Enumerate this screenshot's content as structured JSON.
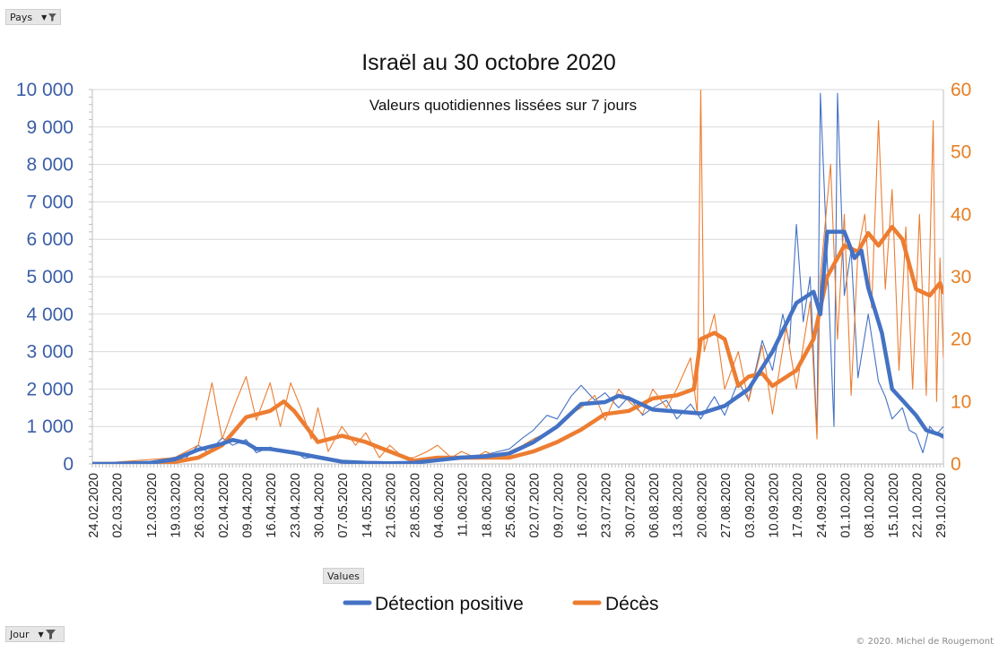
{
  "filters": {
    "country_label": "Pays",
    "day_label": "Jour",
    "values_label": "Values",
    "filter_icon": "funnel-icon",
    "dropdown_icon": "chevron-down-icon"
  },
  "credit": "© 2020.  Michel de Rougemont",
  "chart_data": {
    "type": "line",
    "title": "Israël au 30 octobre 2020",
    "subtitle": "Valeurs quotidiennes lissées sur 7 jours",
    "x_tick_labels": [
      "24.02.2020",
      "02.03.2020",
      "12.03.2020",
      "19.03.2020",
      "26.03.2020",
      "02.04.2020",
      "09.04.2020",
      "16.04.2020",
      "23.04.2020",
      "30.04.2020",
      "07.05.2020",
      "14.05.2020",
      "21.05.2020",
      "28.05.2020",
      "04.06.2020",
      "11.06.2020",
      "18.06.2020",
      "25.06.2020",
      "02.07.2020",
      "09.07.2020",
      "16.07.2020",
      "23.07.2020",
      "30.07.2020",
      "06.08.2020",
      "13.08.2020",
      "20.08.2020",
      "27.08.2020",
      "03.09.2020",
      "10.09.2020",
      "17.09.2020",
      "24.09.2020",
      "01.10.2020",
      "08.10.2020",
      "15.10.2020",
      "22.10.2020",
      "29.10.2020"
    ],
    "y_left": {
      "min": 0,
      "max": 10000,
      "ticks": [
        "0",
        "1 000",
        "2 000",
        "3 000",
        "4 000",
        "5 000",
        "6 000",
        "7 000",
        "8 000",
        "9 000",
        "10 000"
      ],
      "color": "#3a5ea8"
    },
    "y_right": {
      "min": 0,
      "max": 60,
      "ticks": [
        "0",
        "10",
        "20",
        "30",
        "40",
        "50",
        "60"
      ],
      "color": "#e67e22"
    },
    "grid": "horizontal",
    "legend": "bottom",
    "series": [
      {
        "name": "Détection positive",
        "axis": "left",
        "color": "#4472c4",
        "smoothed": [
          [
            "24.02.2020",
            0
          ],
          [
            "02.03.2020",
            5
          ],
          [
            "12.03.2020",
            30
          ],
          [
            "19.03.2020",
            120
          ],
          [
            "26.03.2020",
            380
          ],
          [
            "02.04.2020",
            540
          ],
          [
            "05.04.2020",
            640
          ],
          [
            "09.04.2020",
            560
          ],
          [
            "12.04.2020",
            400
          ],
          [
            "16.04.2020",
            400
          ],
          [
            "23.04.2020",
            300
          ],
          [
            "30.04.2020",
            180
          ],
          [
            "07.05.2020",
            60
          ],
          [
            "14.05.2020",
            30
          ],
          [
            "21.05.2020",
            20
          ],
          [
            "28.05.2020",
            30
          ],
          [
            "04.06.2020",
            100
          ],
          [
            "11.06.2020",
            170
          ],
          [
            "18.06.2020",
            200
          ],
          [
            "25.06.2020",
            280
          ],
          [
            "02.07.2020",
            580
          ],
          [
            "09.07.2020",
            1000
          ],
          [
            "16.07.2020",
            1600
          ],
          [
            "23.07.2020",
            1650
          ],
          [
            "27.07.2020",
            1820
          ],
          [
            "30.07.2020",
            1750
          ],
          [
            "06.08.2020",
            1450
          ],
          [
            "13.08.2020",
            1400
          ],
          [
            "20.08.2020",
            1350
          ],
          [
            "27.08.2020",
            1550
          ],
          [
            "03.09.2020",
            2000
          ],
          [
            "10.09.2020",
            3000
          ],
          [
            "17.09.2020",
            4300
          ],
          [
            "22.09.2020",
            4600
          ],
          [
            "24.09.2020",
            4000
          ],
          [
            "26.09.2020",
            6200
          ],
          [
            "01.10.2020",
            6200
          ],
          [
            "04.10.2020",
            5500
          ],
          [
            "06.10.2020",
            5700
          ],
          [
            "08.10.2020",
            4700
          ],
          [
            "12.10.2020",
            3500
          ],
          [
            "15.10.2020",
            2000
          ],
          [
            "18.10.2020",
            1700
          ],
          [
            "22.10.2020",
            1300
          ],
          [
            "25.10.2020",
            900
          ],
          [
            "29.10.2020",
            780
          ],
          [
            "30.10.2020",
            730
          ]
        ],
        "daily": [
          [
            "24.02.2020",
            0
          ],
          [
            "02.03.2020",
            10
          ],
          [
            "12.03.2020",
            60
          ],
          [
            "19.03.2020",
            180
          ],
          [
            "22.03.2020",
            120
          ],
          [
            "26.03.2020",
            500
          ],
          [
            "29.03.2020",
            300
          ],
          [
            "02.04.2020",
            700
          ],
          [
            "05.04.2020",
            500
          ],
          [
            "09.04.2020",
            650
          ],
          [
            "12.04.2020",
            300
          ],
          [
            "16.04.2020",
            450
          ],
          [
            "19.04.2020",
            350
          ],
          [
            "23.04.2020",
            350
          ],
          [
            "26.04.2020",
            150
          ],
          [
            "30.04.2020",
            200
          ],
          [
            "07.05.2020",
            50
          ],
          [
            "14.05.2020",
            40
          ],
          [
            "21.05.2020",
            20
          ],
          [
            "28.05.2020",
            40
          ],
          [
            "04.06.2020",
            150
          ],
          [
            "11.06.2020",
            200
          ],
          [
            "18.06.2020",
            250
          ],
          [
            "25.06.2020",
            400
          ],
          [
            "29.06.2020",
            700
          ],
          [
            "02.07.2020",
            900
          ],
          [
            "06.07.2020",
            1300
          ],
          [
            "09.07.2020",
            1200
          ],
          [
            "13.07.2020",
            1800
          ],
          [
            "16.07.2020",
            2100
          ],
          [
            "20.07.2020",
            1700
          ],
          [
            "23.07.2020",
            1900
          ],
          [
            "27.07.2020",
            1500
          ],
          [
            "30.07.2020",
            1800
          ],
          [
            "03.08.2020",
            1300
          ],
          [
            "06.08.2020",
            1500
          ],
          [
            "10.08.2020",
            1700
          ],
          [
            "13.08.2020",
            1200
          ],
          [
            "17.08.2020",
            1600
          ],
          [
            "20.08.2020",
            1200
          ],
          [
            "24.08.2020",
            1800
          ],
          [
            "27.08.2020",
            1300
          ],
          [
            "31.08.2020",
            2200
          ],
          [
            "03.09.2020",
            1700
          ],
          [
            "07.09.2020",
            3300
          ],
          [
            "10.09.2020",
            2500
          ],
          [
            "13.09.2020",
            4000
          ],
          [
            "15.09.2020",
            3200
          ],
          [
            "17.09.2020",
            6400
          ],
          [
            "19.09.2020",
            3800
          ],
          [
            "21.09.2020",
            5000
          ],
          [
            "23.09.2020",
            800
          ],
          [
            "24.09.2020",
            9900
          ],
          [
            "26.09.2020",
            5500
          ],
          [
            "28.09.2020",
            1000
          ],
          [
            "29.09.2020",
            9900
          ],
          [
            "01.10.2020",
            4500
          ],
          [
            "03.10.2020",
            5700
          ],
          [
            "05.10.2020",
            2300
          ],
          [
            "08.10.2020",
            4000
          ],
          [
            "11.10.2020",
            2200
          ],
          [
            "13.10.2020",
            1800
          ],
          [
            "15.10.2020",
            1200
          ],
          [
            "18.10.2020",
            1500
          ],
          [
            "20.10.2020",
            900
          ],
          [
            "22.10.2020",
            800
          ],
          [
            "24.10.2020",
            300
          ],
          [
            "26.10.2020",
            1000
          ],
          [
            "28.10.2020",
            800
          ],
          [
            "30.10.2020",
            1000
          ]
        ]
      },
      {
        "name": "Décès",
        "axis": "right",
        "color": "#ed7d31",
        "smoothed": [
          [
            "24.02.2020",
            0
          ],
          [
            "12.03.2020",
            0
          ],
          [
            "19.03.2020",
            0.3
          ],
          [
            "26.03.2020",
            1
          ],
          [
            "02.04.2020",
            3
          ],
          [
            "09.04.2020",
            7.5
          ],
          [
            "16.04.2020",
            8.5
          ],
          [
            "20.04.2020",
            10
          ],
          [
            "23.04.2020",
            8.5
          ],
          [
            "30.04.2020",
            3.5
          ],
          [
            "07.05.2020",
            4.5
          ],
          [
            "14.05.2020",
            3.5
          ],
          [
            "21.05.2020",
            2
          ],
          [
            "28.05.2020",
            0.5
          ],
          [
            "04.06.2020",
            1
          ],
          [
            "11.06.2020",
            1
          ],
          [
            "18.06.2020",
            1
          ],
          [
            "25.06.2020",
            1
          ],
          [
            "02.07.2020",
            2
          ],
          [
            "09.07.2020",
            3.5
          ],
          [
            "16.07.2020",
            5.5
          ],
          [
            "23.07.2020",
            8
          ],
          [
            "30.07.2020",
            8.5
          ],
          [
            "06.08.2020",
            10.5
          ],
          [
            "13.08.2020",
            11
          ],
          [
            "18.08.2020",
            12
          ],
          [
            "20.08.2020",
            20
          ],
          [
            "24.08.2020",
            21
          ],
          [
            "27.08.2020",
            20
          ],
          [
            "31.08.2020",
            12.5
          ],
          [
            "03.09.2020",
            14
          ],
          [
            "07.09.2020",
            14.5
          ],
          [
            "10.09.2020",
            12.5
          ],
          [
            "17.09.2020",
            15
          ],
          [
            "22.09.2020",
            20
          ],
          [
            "26.09.2020",
            30
          ],
          [
            "01.10.2020",
            35
          ],
          [
            "05.10.2020",
            34
          ],
          [
            "08.10.2020",
            37
          ],
          [
            "11.10.2020",
            35
          ],
          [
            "15.10.2020",
            38
          ],
          [
            "18.10.2020",
            36
          ],
          [
            "22.10.2020",
            28
          ],
          [
            "26.10.2020",
            27
          ],
          [
            "29.10.2020",
            29
          ],
          [
            "30.10.2020",
            27.5
          ]
        ],
        "daily": [
          [
            "24.02.2020",
            0
          ],
          [
            "19.03.2020",
            1
          ],
          [
            "26.03.2020",
            3
          ],
          [
            "30.03.2020",
            13
          ],
          [
            "02.04.2020",
            4
          ],
          [
            "06.04.2020",
            10
          ],
          [
            "09.04.2020",
            14
          ],
          [
            "12.04.2020",
            7
          ],
          [
            "16.04.2020",
            13
          ],
          [
            "19.04.2020",
            6
          ],
          [
            "22.04.2020",
            13
          ],
          [
            "25.04.2020",
            9
          ],
          [
            "28.04.2020",
            4
          ],
          [
            "30.04.2020",
            9
          ],
          [
            "03.05.2020",
            2
          ],
          [
            "07.05.2020",
            6
          ],
          [
            "11.05.2020",
            3
          ],
          [
            "14.05.2020",
            5
          ],
          [
            "18.05.2020",
            1
          ],
          [
            "21.05.2020",
            3
          ],
          [
            "25.05.2020",
            1
          ],
          [
            "28.05.2020",
            1
          ],
          [
            "01.06.2020",
            2
          ],
          [
            "04.06.2020",
            3
          ],
          [
            "08.06.2020",
            1
          ],
          [
            "11.06.2020",
            2
          ],
          [
            "15.06.2020",
            1
          ],
          [
            "18.06.2020",
            2
          ],
          [
            "22.06.2020",
            1
          ],
          [
            "25.06.2020",
            2
          ],
          [
            "29.06.2020",
            3
          ],
          [
            "02.07.2020",
            4
          ],
          [
            "06.07.2020",
            5
          ],
          [
            "09.07.2020",
            6
          ],
          [
            "13.07.2020",
            8
          ],
          [
            "16.07.2020",
            9
          ],
          [
            "20.07.2020",
            11
          ],
          [
            "23.07.2020",
            7
          ],
          [
            "27.07.2020",
            12
          ],
          [
            "30.07.2020",
            10
          ],
          [
            "03.08.2020",
            8
          ],
          [
            "06.08.2020",
            12
          ],
          [
            "10.08.2020",
            9
          ],
          [
            "13.08.2020",
            12
          ],
          [
            "17.08.2020",
            17
          ],
          [
            "19.08.2020",
            8
          ],
          [
            "20.08.2020",
            60
          ],
          [
            "21.08.2020",
            18
          ],
          [
            "24.08.2020",
            24
          ],
          [
            "27.08.2020",
            12
          ],
          [
            "31.08.2020",
            18
          ],
          [
            "03.09.2020",
            10
          ],
          [
            "07.09.2020",
            19
          ],
          [
            "10.09.2020",
            8
          ],
          [
            "14.09.2020",
            22
          ],
          [
            "17.09.2020",
            12
          ],
          [
            "21.09.2020",
            26
          ],
          [
            "23.09.2020",
            4
          ],
          [
            "24.09.2020",
            30
          ],
          [
            "27.09.2020",
            48
          ],
          [
            "29.09.2020",
            20
          ],
          [
            "01.10.2020",
            40
          ],
          [
            "03.10.2020",
            11
          ],
          [
            "05.10.2020",
            34
          ],
          [
            "07.10.2020",
            40
          ],
          [
            "09.10.2020",
            25
          ],
          [
            "11.10.2020",
            55
          ],
          [
            "13.10.2020",
            28
          ],
          [
            "15.10.2020",
            44
          ],
          [
            "17.10.2020",
            15
          ],
          [
            "19.10.2020",
            38
          ],
          [
            "21.10.2020",
            12
          ],
          [
            "23.10.2020",
            40
          ],
          [
            "25.10.2020",
            11
          ],
          [
            "27.10.2020",
            55
          ],
          [
            "28.10.2020",
            10
          ],
          [
            "29.10.2020",
            33
          ],
          [
            "30.10.2020",
            17
          ]
        ]
      }
    ]
  }
}
